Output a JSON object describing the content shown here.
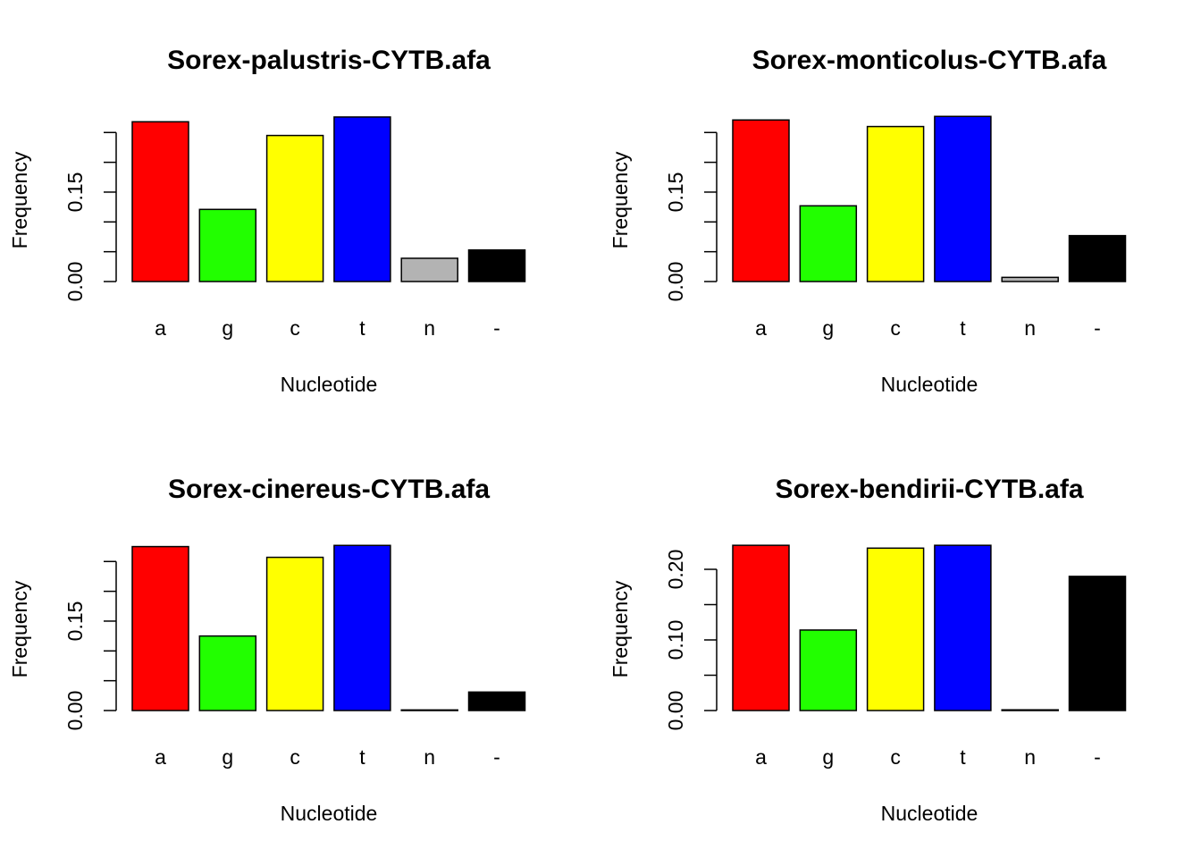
{
  "chart_data": [
    {
      "type": "bar",
      "title": "Sorex-palustris-CYTB.afa",
      "xlabel": "Nucleotide",
      "ylabel": "Frequency",
      "categories": [
        "a",
        "g",
        "c",
        "t",
        "n",
        "-"
      ],
      "values": [
        0.268,
        0.121,
        0.245,
        0.276,
        0.039,
        0.053
      ],
      "colors": [
        "#ff0000",
        "#22ff00",
        "#ffff00",
        "#0000ff",
        "#b3b3b3",
        "#000000"
      ],
      "yticks": [
        0.0,
        0.05,
        0.1,
        0.15,
        0.2,
        0.25
      ],
      "ytick_labels": [
        "0.00",
        "",
        "",
        "0.15",
        "",
        ""
      ]
    },
    {
      "type": "bar",
      "title": "Sorex-monticolus-CYTB.afa",
      "xlabel": "Nucleotide",
      "ylabel": "Frequency",
      "categories": [
        "a",
        "g",
        "c",
        "t",
        "n",
        "-"
      ],
      "values": [
        0.271,
        0.127,
        0.26,
        0.277,
        0.007,
        0.077
      ],
      "colors": [
        "#ff0000",
        "#22ff00",
        "#ffff00",
        "#0000ff",
        "#b3b3b3",
        "#000000"
      ],
      "yticks": [
        0.0,
        0.05,
        0.1,
        0.15,
        0.2,
        0.25
      ],
      "ytick_labels": [
        "0.00",
        "",
        "",
        "0.15",
        "",
        ""
      ]
    },
    {
      "type": "bar",
      "title": "Sorex-cinereus-CYTB.afa",
      "xlabel": "Nucleotide",
      "ylabel": "Frequency",
      "categories": [
        "a",
        "g",
        "c",
        "t",
        "n",
        "-"
      ],
      "values": [
        0.275,
        0.125,
        0.257,
        0.277,
        0.001,
        0.031
      ],
      "colors": [
        "#ff0000",
        "#22ff00",
        "#ffff00",
        "#0000ff",
        "#b3b3b3",
        "#000000"
      ],
      "yticks": [
        0.0,
        0.05,
        0.1,
        0.15,
        0.2,
        0.25
      ],
      "ytick_labels": [
        "0.00",
        "",
        "",
        "0.15",
        "",
        ""
      ]
    },
    {
      "type": "bar",
      "title": "Sorex-bendirii-CYTB.afa",
      "xlabel": "Nucleotide",
      "ylabel": "Frequency",
      "categories": [
        "a",
        "g",
        "c",
        "t",
        "n",
        "-"
      ],
      "values": [
        0.234,
        0.114,
        0.23,
        0.234,
        0.001,
        0.19
      ],
      "colors": [
        "#ff0000",
        "#22ff00",
        "#ffff00",
        "#0000ff",
        "#b3b3b3",
        "#000000"
      ],
      "yticks": [
        0.0,
        0.05,
        0.1,
        0.15,
        0.2
      ],
      "ytick_labels": [
        "0.00",
        "",
        "0.10",
        "",
        "0.20"
      ]
    }
  ]
}
